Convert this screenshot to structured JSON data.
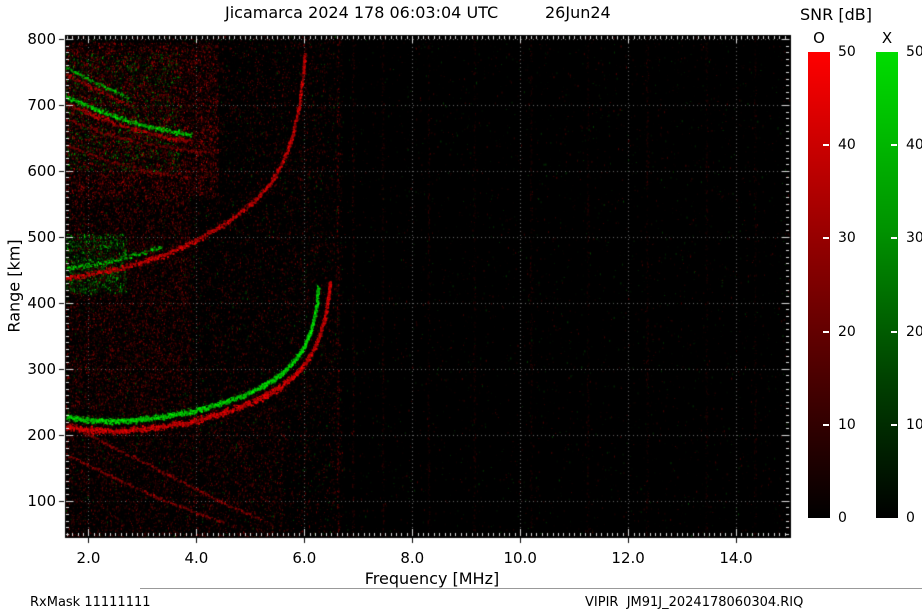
{
  "title": {
    "text": "Jicamarca 2024 178 06:03:04 UTC",
    "date": "26Jun24"
  },
  "footer": {
    "left": "RxMask 11111111",
    "right": "VIPIR  JM91J_2024178060304.RIQ"
  },
  "chart_data": {
    "type": "heatmap",
    "kind": "ionogram",
    "title": "Jicamarca 2024 178 06:03:04 UTC",
    "date_label": "26Jun24",
    "xlabel": "Frequency [MHz]",
    "ylabel": "Range [km]",
    "xlim": [
      1.565,
      15.0
    ],
    "ylim": [
      45,
      806
    ],
    "xticks": [
      2,
      4,
      6,
      8,
      10,
      12,
      14
    ],
    "xtick_labels": [
      "2.0",
      "4.0",
      "6.0",
      "8.0",
      "10.0",
      "12.0",
      "14.0"
    ],
    "yticks": [
      100,
      200,
      300,
      400,
      500,
      600,
      700,
      800
    ],
    "ytick_labels": [
      "100",
      "200",
      "300",
      "400",
      "500",
      "600",
      "700",
      "800"
    ],
    "grid": true,
    "bg_color": "#000000",
    "o_mode_color": "#ff0000",
    "x_mode_color": "#00cc00",
    "colorbar": {
      "title": "SNR [dB]",
      "range": [
        0,
        50
      ],
      "ticks": [
        0,
        10,
        20,
        30,
        40,
        50
      ],
      "bars": [
        {
          "label": "O",
          "top_color": "#ff0000"
        },
        {
          "label": "X",
          "top_color": "#00cc00"
        }
      ]
    },
    "traces": [
      {
        "name": "second-hop-o-trace",
        "mode": "O",
        "color": "red",
        "width_km": 6,
        "density": 2.5,
        "min": 120,
        "max": 255,
        "points": [
          [
            1.565,
            437
          ],
          [
            2.0,
            444
          ],
          [
            2.5,
            452
          ],
          [
            3.0,
            463
          ],
          [
            3.5,
            477
          ],
          [
            4.0,
            496
          ],
          [
            4.5,
            520
          ],
          [
            5.0,
            550
          ],
          [
            5.35,
            580
          ],
          [
            5.6,
            615
          ],
          [
            5.78,
            655
          ],
          [
            5.9,
            700
          ],
          [
            5.97,
            745
          ],
          [
            6.0,
            778
          ]
        ]
      },
      {
        "name": "second-hop-x-fringe",
        "mode": "X",
        "color": "green",
        "width_km": 5,
        "density": 1.2,
        "min": 120,
        "max": 240,
        "points": [
          [
            1.565,
            452
          ],
          [
            2.0,
            458
          ],
          [
            2.5,
            466
          ],
          [
            3.0,
            476
          ],
          [
            3.35,
            486
          ]
        ]
      },
      {
        "name": "upper-band-x",
        "mode": "X",
        "color": "green",
        "width_km": 5,
        "density": 2.0,
        "min": 130,
        "max": 255,
        "points": [
          [
            1.565,
            714
          ],
          [
            1.9,
            702
          ],
          [
            2.3,
            689
          ],
          [
            2.7,
            677
          ],
          [
            3.1,
            668
          ],
          [
            3.5,
            661
          ],
          [
            3.9,
            656
          ]
        ]
      },
      {
        "name": "upper-band-o",
        "mode": "O",
        "color": "red",
        "width_km": 5,
        "density": 1.5,
        "min": 110,
        "max": 220,
        "points": [
          [
            1.565,
            704
          ],
          [
            1.9,
            692
          ],
          [
            2.3,
            679
          ],
          [
            2.7,
            667
          ],
          [
            3.1,
            658
          ],
          [
            3.5,
            651
          ],
          [
            3.9,
            646
          ]
        ]
      },
      {
        "name": "top-band-x",
        "mode": "X",
        "color": "green",
        "width_km": 4,
        "density": 1.2,
        "min": 110,
        "max": 230,
        "points": [
          [
            1.565,
            758
          ],
          [
            1.95,
            742
          ],
          [
            2.35,
            726
          ],
          [
            2.75,
            710
          ]
        ]
      },
      {
        "name": "top-band-o",
        "mode": "O",
        "color": "red",
        "width_km": 4,
        "density": 1.0,
        "min": 100,
        "max": 200,
        "points": [
          [
            1.565,
            748
          ],
          [
            1.95,
            732
          ],
          [
            2.35,
            716
          ],
          [
            2.75,
            700
          ]
        ]
      },
      {
        "name": "spread-arc-1",
        "mode": "O",
        "color": "red",
        "width_km": 3,
        "density": 0.8,
        "min": 80,
        "max": 160,
        "points": [
          [
            1.565,
            680
          ],
          [
            2.2,
            660
          ],
          [
            2.9,
            645
          ],
          [
            3.6,
            635
          ],
          [
            4.3,
            628
          ]
        ]
      },
      {
        "name": "spread-arc-2",
        "mode": "O",
        "color": "red",
        "width_km": 3,
        "density": 0.7,
        "min": 80,
        "max": 150,
        "points": [
          [
            1.565,
            640
          ],
          [
            2.3,
            618
          ],
          [
            3.1,
            600
          ],
          [
            3.9,
            590
          ]
        ]
      },
      {
        "name": "oblique-echo-1",
        "mode": "O",
        "color": "red",
        "width_km": 3,
        "density": 0.9,
        "min": 90,
        "max": 170,
        "points": [
          [
            1.565,
            172
          ],
          [
            2.3,
            142
          ],
          [
            3.2,
            108
          ],
          [
            4.0,
            82
          ],
          [
            4.5,
            68
          ]
        ]
      },
      {
        "name": "oblique-echo-2",
        "mode": "O",
        "color": "red",
        "width_km": 3,
        "density": 0.9,
        "min": 90,
        "max": 170,
        "points": [
          [
            1.565,
            218
          ],
          [
            2.2,
            192
          ],
          [
            3.0,
            160
          ],
          [
            3.8,
            126
          ],
          [
            4.6,
            93
          ],
          [
            5.2,
            72
          ]
        ]
      },
      {
        "name": "f-layer-o-trace",
        "mode": "O",
        "color": "red",
        "width_km": 7,
        "density": 3.5,
        "min": 150,
        "max": 255,
        "points": [
          [
            1.565,
            213
          ],
          [
            2.0,
            208
          ],
          [
            2.5,
            206
          ],
          [
            3.0,
            209
          ],
          [
            3.5,
            215
          ],
          [
            4.0,
            223
          ],
          [
            4.4,
            232
          ],
          [
            4.8,
            243
          ],
          [
            5.2,
            257
          ],
          [
            5.5,
            271
          ],
          [
            5.8,
            290
          ],
          [
            6.0,
            308
          ],
          [
            6.15,
            327
          ],
          [
            6.28,
            351
          ],
          [
            6.38,
            381
          ],
          [
            6.44,
            411
          ],
          [
            6.47,
            432
          ]
        ]
      },
      {
        "name": "f-layer-x-trace",
        "mode": "X",
        "color": "green",
        "width_km": 6,
        "density": 3.5,
        "min": 150,
        "max": 255,
        "points": [
          [
            1.565,
            228
          ],
          [
            2.0,
            223
          ],
          [
            2.5,
            221
          ],
          [
            3.0,
            224
          ],
          [
            3.5,
            230
          ],
          [
            4.0,
            238
          ],
          [
            4.4,
            247
          ],
          [
            4.8,
            258
          ],
          [
            5.1,
            269
          ],
          [
            5.4,
            283
          ],
          [
            5.65,
            299
          ],
          [
            5.85,
            317
          ],
          [
            6.0,
            336
          ],
          [
            6.1,
            355
          ],
          [
            6.18,
            379
          ],
          [
            6.23,
            404
          ],
          [
            6.25,
            427
          ]
        ]
      }
    ],
    "noise_regions": [
      {
        "f": [
          1.565,
          6.7
        ],
        "km": [
          45,
          806
        ],
        "color": "red",
        "n": 12000,
        "max": 110
      },
      {
        "f": [
          1.565,
          6.7
        ],
        "km": [
          45,
          806
        ],
        "color": "green",
        "n": 2200,
        "max": 85
      },
      {
        "f": [
          6.7,
          15.0
        ],
        "km": [
          45,
          806
        ],
        "color": "red",
        "n": 2600,
        "max": 70
      },
      {
        "f": [
          6.7,
          15.0
        ],
        "km": [
          45,
          806
        ],
        "color": "green",
        "n": 1500,
        "max": 55
      },
      {
        "f": [
          1.565,
          4.4
        ],
        "km": [
          560,
          795
        ],
        "color": "red",
        "n": 8000,
        "max": 190
      },
      {
        "f": [
          1.565,
          3.7
        ],
        "km": [
          600,
          780
        ],
        "color": "green",
        "n": 1400,
        "max": 170
      },
      {
        "f": [
          1.565,
          3.9
        ],
        "km": [
          240,
          560
        ],
        "color": "red",
        "n": 5500,
        "max": 145
      },
      {
        "f": [
          1.565,
          2.7
        ],
        "km": [
          415,
          505
        ],
        "color": "green",
        "n": 1300,
        "max": 215
      },
      {
        "f": [
          1.565,
          5.6
        ],
        "km": [
          45,
          240
        ],
        "color": "red",
        "n": 3500,
        "max": 120
      },
      {
        "f": [
          3.9,
          6.6
        ],
        "km": [
          240,
          806
        ],
        "color": "red",
        "n": 2000,
        "max": 95
      }
    ],
    "rfi_lines": [
      {
        "f": 6.62,
        "max": 150
      },
      {
        "f": 6.9,
        "max": 85
      },
      {
        "f": 7.45,
        "max": 60
      },
      {
        "f": 8.3,
        "max": 60
      },
      {
        "f": 9.15,
        "max": 50
      },
      {
        "f": 10.2,
        "max": 55
      },
      {
        "f": 11.25,
        "max": 45
      },
      {
        "f": 12.35,
        "max": 50
      },
      {
        "f": 13.45,
        "max": 45
      },
      {
        "f": 14.35,
        "max": 45
      }
    ]
  }
}
